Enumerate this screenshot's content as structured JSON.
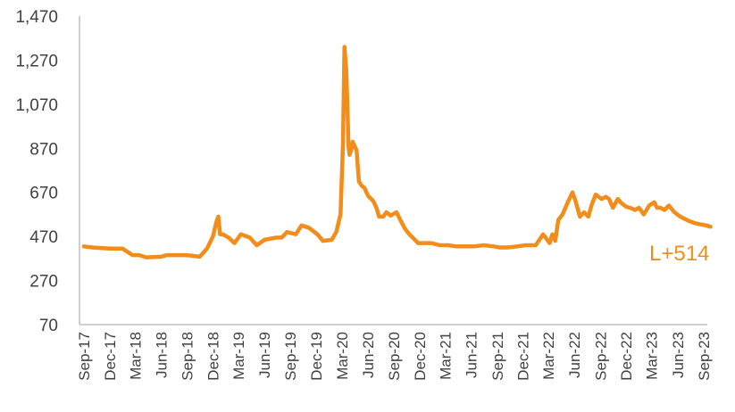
{
  "chart_data": {
    "type": "line",
    "title": "",
    "xlabel": "",
    "ylabel": "",
    "ylim": [
      70,
      1470
    ],
    "yticks": [
      "1,470",
      "1,270",
      "1,070",
      "870",
      "670",
      "470",
      "270",
      "70"
    ],
    "x_tick_labels": [
      "Sep-17",
      "Dec-17",
      "Mar-18",
      "Jun-18",
      "Sep-18",
      "Dec-18",
      "Mar-19",
      "Jun-19",
      "Sep-19",
      "Dec-19",
      "Mar-20",
      "Jun-20",
      "Sep-20",
      "Dec-20",
      "Mar-21",
      "Jun-21",
      "Sep-21",
      "Dec-21",
      "Mar-22",
      "Jun-22",
      "Sep-22",
      "Dec-22",
      "Mar-23",
      "Jun-23",
      "Sep-23"
    ],
    "grid": false,
    "line_color": "#F28C1A",
    "annotation": "L+514",
    "series": [
      {
        "x": [
          "2017-09-01",
          "2017-10-01",
          "2017-12-01",
          "2018-01-15",
          "2018-02-20",
          "2018-03-15",
          "2018-04-10",
          "2018-06-01",
          "2018-06-20",
          "2018-07-15",
          "2018-09-01",
          "2018-10-15",
          "2018-11-10",
          "2018-12-01",
          "2018-12-14",
          "2018-12-20",
          "2018-12-26",
          "2019-01-05",
          "2019-01-25",
          "2019-02-15",
          "2019-03-10",
          "2019-04-10",
          "2019-05-05",
          "2019-06-01",
          "2019-07-15",
          "2019-08-01",
          "2019-08-20",
          "2019-09-20",
          "2019-10-10",
          "2019-11-05",
          "2019-12-05",
          "2019-12-25",
          "2020-01-25",
          "2020-02-10",
          "2020-02-25",
          "2020-03-05",
          "2020-03-10",
          "2020-03-16",
          "2020-03-20",
          "2020-03-24",
          "2020-03-28",
          "2020-04-02",
          "2020-04-08",
          "2020-04-15",
          "2020-04-22",
          "2020-04-30",
          "2020-05-10",
          "2020-05-20",
          "2020-06-01",
          "2020-06-20",
          "2020-07-01",
          "2020-07-10",
          "2020-07-25",
          "2020-08-05",
          "2020-08-20",
          "2020-09-10",
          "2020-09-25",
          "2020-10-10",
          "2020-10-25",
          "2020-11-10",
          "2020-11-25",
          "2020-12-20",
          "2021-01-10",
          "2021-02-10",
          "2021-03-10",
          "2021-04-10",
          "2021-05-10",
          "2021-06-10",
          "2021-07-15",
          "2021-08-20",
          "2021-09-10",
          "2021-10-10",
          "2021-11-10",
          "2021-12-10",
          "2022-01-15",
          "2022-02-10",
          "2022-03-05",
          "2022-03-15",
          "2022-03-25",
          "2022-04-05",
          "2022-04-20",
          "2022-05-10",
          "2022-05-25",
          "2022-06-05",
          "2022-06-20",
          "2022-07-05",
          "2022-07-20",
          "2022-08-01",
          "2022-08-15",
          "2022-08-25",
          "2022-09-05",
          "2022-09-20",
          "2022-10-01",
          "2022-10-15",
          "2022-11-01",
          "2022-11-15",
          "2022-12-01",
          "2022-12-15",
          "2023-01-01",
          "2023-01-15",
          "2023-02-01",
          "2023-02-20",
          "2023-03-10",
          "2023-03-20",
          "2023-04-01",
          "2023-04-15",
          "2023-05-01",
          "2023-05-20",
          "2023-06-10",
          "2023-06-25",
          "2023-07-10",
          "2023-08-01",
          "2023-08-20",
          "2023-09-10",
          "2023-09-25"
        ],
        "y": [
          425,
          420,
          415,
          415,
          385,
          385,
          375,
          378,
          385,
          385,
          385,
          378,
          415,
          470,
          540,
          560,
          480,
          480,
          465,
          440,
          480,
          465,
          430,
          455,
          465,
          465,
          490,
          480,
          520,
          510,
          480,
          450,
          455,
          490,
          570,
          900,
          1330,
          1230,
          1080,
          880,
          840,
          860,
          900,
          880,
          860,
          720,
          700,
          690,
          655,
          630,
          600,
          560,
          560,
          580,
          565,
          580,
          540,
          505,
          480,
          460,
          440,
          440,
          440,
          430,
          430,
          425,
          425,
          425,
          430,
          425,
          420,
          420,
          425,
          430,
          430,
          480,
          440,
          480,
          450,
          545,
          570,
          630,
          670,
          630,
          560,
          580,
          560,
          615,
          660,
          650,
          640,
          650,
          640,
          600,
          640,
          620,
          605,
          600,
          590,
          600,
          570,
          610,
          625,
          600,
          600,
          590,
          610,
          580,
          560,
          550,
          540,
          530,
          525,
          520,
          514
        ]
      }
    ]
  }
}
